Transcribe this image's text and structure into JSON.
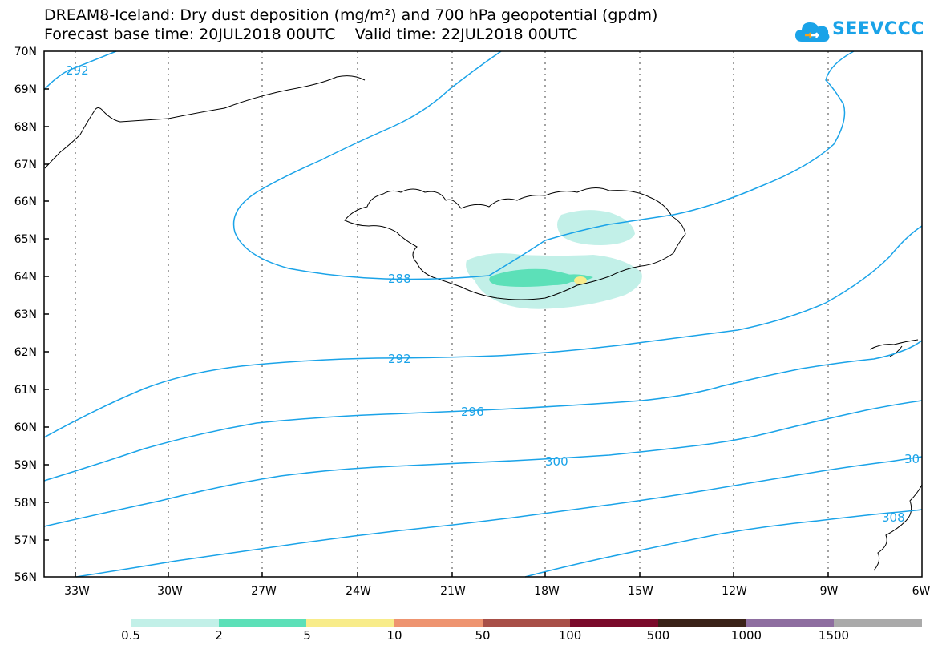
{
  "title": {
    "line1": "DREAM8-Iceland: Dry dust deposition (mg/m²) and 700 hPa geopotential (gpdm)",
    "line2": "Forecast base time: 20JUL2018 00UTC    Valid time: 22JUL2018 00UTC"
  },
  "logo": {
    "text": "SEEVCCC",
    "icon": "cloud-icon",
    "color": "#1aa3e8"
  },
  "map": {
    "lat_labels": [
      "70N",
      "69N",
      "68N",
      "67N",
      "66N",
      "65N",
      "64N",
      "63N",
      "62N",
      "61N",
      "60N",
      "59N",
      "58N",
      "57N",
      "56N"
    ],
    "lon_labels": [
      "33W",
      "30W",
      "27W",
      "24W",
      "21W",
      "18W",
      "15W",
      "12W",
      "9W",
      "6W"
    ],
    "contour_color": "#1aa3e8",
    "contour_labels": [
      "292",
      "288",
      "292",
      "296",
      "300",
      "30",
      "308"
    ]
  },
  "legend": {
    "colors": [
      "#c2f0e8",
      "#5ce0b8",
      "#f8ec8a",
      "#ee9470",
      "#a84f48",
      "#7a0a2a",
      "#3a2218",
      "#8e6ea0",
      "#aaaaaa"
    ],
    "labels": [
      "0.5",
      "2",
      "5",
      "10",
      "50",
      "100",
      "500",
      "1000",
      "1500"
    ]
  }
}
